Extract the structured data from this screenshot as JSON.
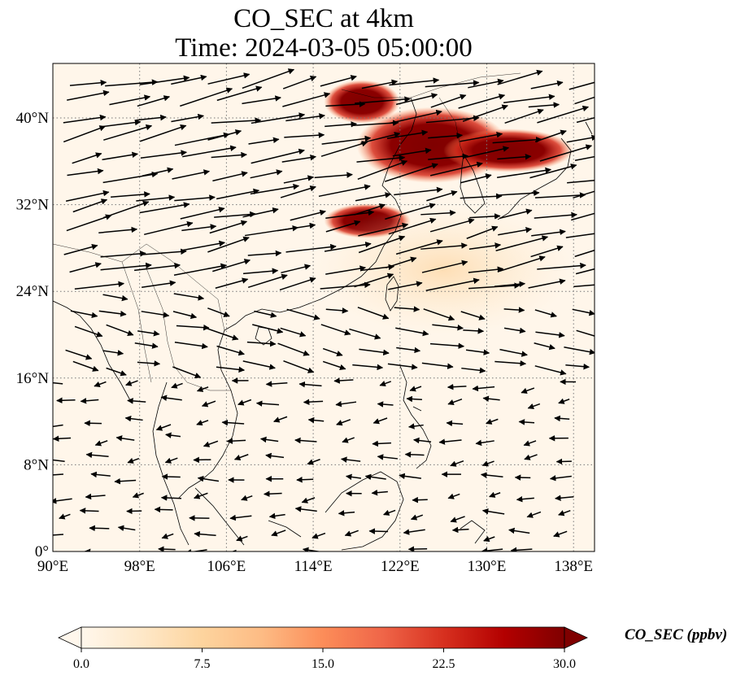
{
  "title": {
    "line1": "CO_SEC at 4km",
    "line2": "Time: 2024-03-05 05:00:00"
  },
  "map": {
    "lon_range": [
      90,
      140
    ],
    "lat_range": [
      0,
      45
    ],
    "lon_ticks": [
      {
        "value": 90,
        "label": "90°E"
      },
      {
        "value": 98,
        "label": "98°E"
      },
      {
        "value": 106,
        "label": "106°E"
      },
      {
        "value": 114,
        "label": "114°E"
      },
      {
        "value": 122,
        "label": "122°E"
      },
      {
        "value": 130,
        "label": "130°E"
      },
      {
        "value": 138,
        "label": "138°E"
      }
    ],
    "lat_ticks": [
      {
        "value": 0,
        "label": "0°"
      },
      {
        "value": 8,
        "label": "8°N"
      },
      {
        "value": 16,
        "label": "16°N"
      },
      {
        "value": 24,
        "label": "24°N"
      },
      {
        "value": 32,
        "label": "32°N"
      },
      {
        "value": 40,
        "label": "40°N"
      }
    ],
    "gridlines": true
  },
  "colorbar": {
    "label": "CO_SEC (ppbv)",
    "ticks": [
      {
        "value": 0,
        "label": "0.0"
      },
      {
        "value": 7.5,
        "label": "7.5"
      },
      {
        "value": 15,
        "label": "15.0"
      },
      {
        "value": 22.5,
        "label": "22.5"
      },
      {
        "value": 30,
        "label": "30.0"
      }
    ],
    "min": 0,
    "max": 30,
    "colormap": "OrRd",
    "colors": [
      "#fff7ec",
      "#fee8c8",
      "#fdd49e",
      "#fdbb84",
      "#fc8d59",
      "#ef6548",
      "#d7301f",
      "#b30000",
      "#7f0000"
    ]
  },
  "plumes": [
    {
      "name": "north-china-plume",
      "lon": 125,
      "lat": 37.5,
      "rx": 7,
      "ry": 3.5,
      "value": 30
    },
    {
      "name": "mongolia-plume",
      "lon": 118.5,
      "lat": 41.5,
      "rx": 3.5,
      "ry": 2,
      "value": 30
    },
    {
      "name": "korea-japan-plume",
      "lon": 132,
      "lat": 37,
      "rx": 6,
      "ry": 2,
      "value": 28
    },
    {
      "name": "yangtze-plume",
      "lon": 119,
      "lat": 30.5,
      "rx": 4,
      "ry": 1.6,
      "value": 26
    },
    {
      "name": "coastal-haze",
      "lon": 126,
      "lat": 26,
      "rx": 12,
      "ry": 6,
      "value": 4
    }
  ],
  "wind_field": {
    "regions": [
      {
        "lat_min": 24,
        "lat_max": 44,
        "lon_min": 90,
        "lon_max": 140,
        "direction_deg": 12,
        "strength": 1.0
      },
      {
        "lat_min": 16,
        "lat_max": 24,
        "lon_min": 90,
        "lon_max": 140,
        "direction_deg": -12,
        "strength": 0.55
      },
      {
        "lat_min": 0,
        "lat_max": 16,
        "lon_min": 90,
        "lon_max": 140,
        "direction_deg": 180,
        "strength": 0.3
      }
    ]
  }
}
